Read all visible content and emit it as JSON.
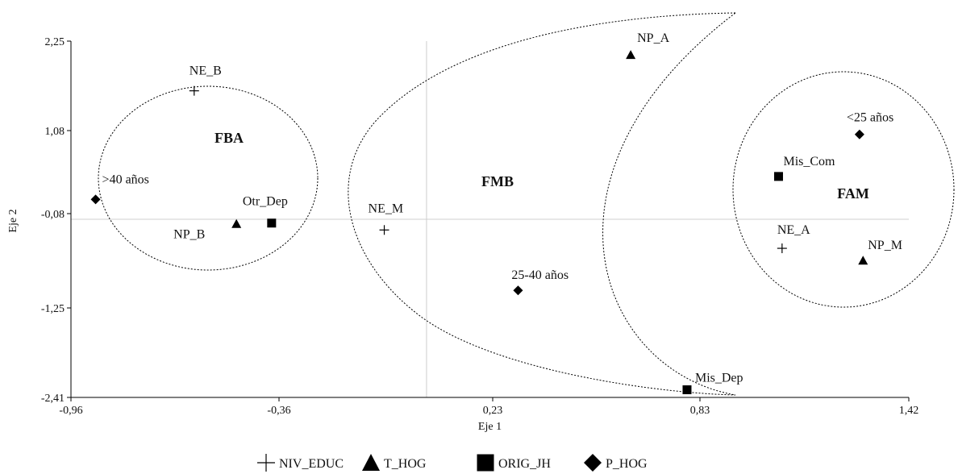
{
  "chart_data": {
    "type": "scatter",
    "xlabel": "Eje 1",
    "ylabel": "Eje 2",
    "xlim": [
      -0.96,
      1.42
    ],
    "ylim": [
      -2.41,
      2.25
    ],
    "xticks": [
      "-0,96",
      "-0,36",
      "0,23",
      "0,83",
      "1,42"
    ],
    "yticks": [
      "2,25",
      "1,08",
      "-0,08",
      "-1,25",
      "-2,41"
    ],
    "reference_lines": {
      "x": 0.05,
      "y": -0.08
    },
    "series": [
      {
        "name": "NIV_EDUC",
        "marker": "plus",
        "points": [
          {
            "label": "NE_B",
            "x": -0.61,
            "y": 1.6
          },
          {
            "label": "NE_M",
            "x": -0.07,
            "y": -0.22
          },
          {
            "label": "NE_A",
            "x": 1.06,
            "y": -0.46
          }
        ]
      },
      {
        "name": "T_HOG",
        "marker": "triangle",
        "points": [
          {
            "label": "NP_B",
            "x": -0.49,
            "y": -0.14
          },
          {
            "label": "NP_A",
            "x": 0.63,
            "y": 2.07
          },
          {
            "label": "NP_M",
            "x": 1.29,
            "y": -0.62
          }
        ]
      },
      {
        "name": "ORIG_JH",
        "marker": "square",
        "points": [
          {
            "label": "Otr_Dep",
            "x": -0.39,
            "y": -0.13
          },
          {
            "label": "Mis_Dep",
            "x": 0.79,
            "y": -2.31
          },
          {
            "label": "Mis_Com",
            "x": 1.05,
            "y": 0.48
          }
        ]
      },
      {
        "name": "P_HOG",
        "marker": "diamond",
        "points": [
          {
            "label": ">40 años",
            "x": -0.89,
            "y": 0.18
          },
          {
            "label": "25-40 años",
            "x": 0.31,
            "y": -1.01
          },
          {
            "label": "<25 años",
            "x": 1.28,
            "y": 1.03
          }
        ]
      }
    ],
    "groups": [
      {
        "label": "FBA"
      },
      {
        "label": "FMB"
      },
      {
        "label": "FAM"
      }
    ]
  }
}
